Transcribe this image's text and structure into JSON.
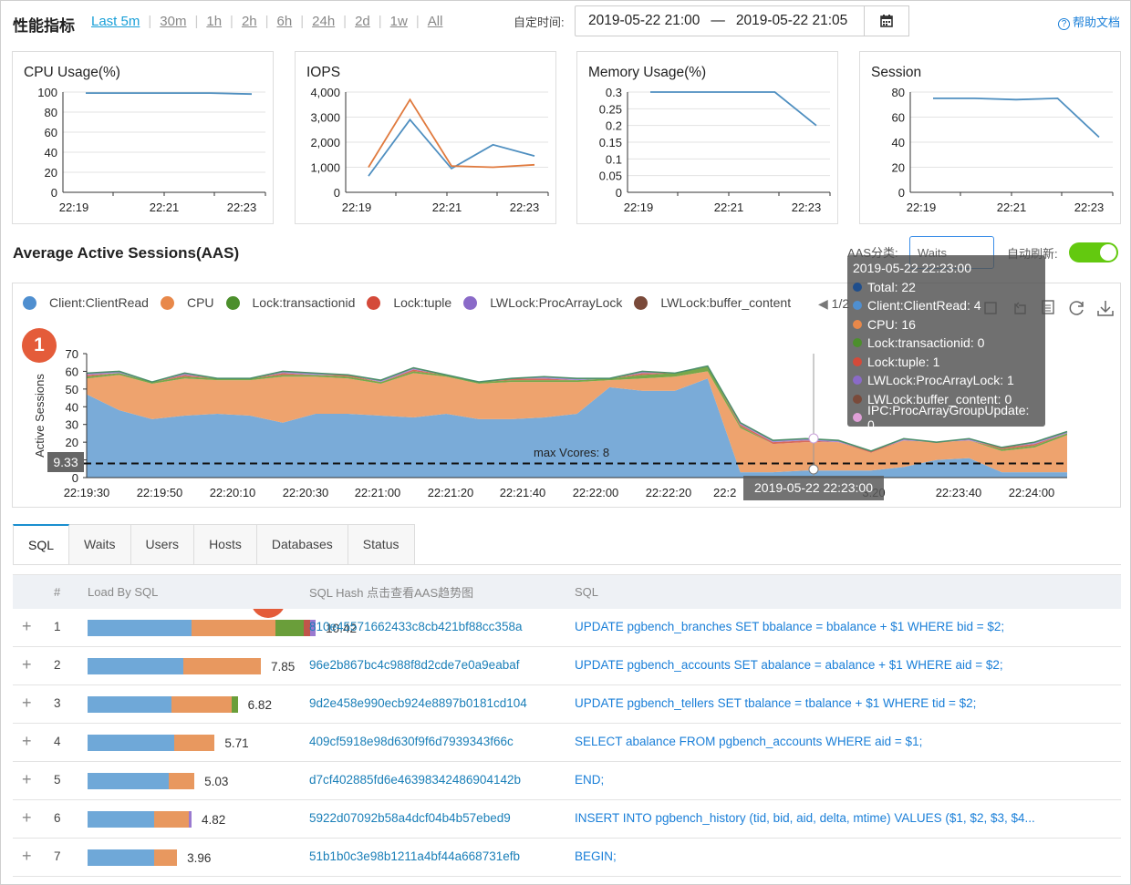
{
  "header": {
    "title": "性能指标",
    "ranges": [
      "Last 5m",
      "30m",
      "1h",
      "2h",
      "6h",
      "24h",
      "2d",
      "1w",
      "All"
    ],
    "active_range": "Last 5m",
    "custom_time_label": "自定时间:",
    "start_time": "2019-05-22 21:00",
    "dash": "—",
    "end_time": "2019-05-22 21:05",
    "help_label": "帮助文档"
  },
  "metrics": [
    {
      "title": "CPU Usage(%)",
      "x": [
        "22:19",
        "22:21",
        "22:23"
      ],
      "yticks": [
        "100",
        "80",
        "60",
        "40",
        "20",
        "0"
      ]
    },
    {
      "title": "IOPS",
      "x": [
        "22:19",
        "22:21",
        "22:23"
      ],
      "yticks": [
        "4,000",
        "3,000",
        "2,000",
        "1,000",
        "0"
      ]
    },
    {
      "title": "Memory Usage(%)",
      "x": [
        "22:19",
        "22:21",
        "22:23"
      ],
      "yticks": [
        "0.3",
        "0.25",
        "0.2",
        "0.15",
        "0.1",
        "0.05",
        "0"
      ]
    },
    {
      "title": "Session",
      "x": [
        "22:19",
        "22:21",
        "22:23"
      ],
      "yticks": [
        "80",
        "60",
        "40",
        "20",
        "0"
      ]
    }
  ],
  "aas": {
    "title": "Average Active Sessions(AAS)",
    "category_label": "AAS分类:",
    "category_value": "Waits",
    "auto_refresh_label": "自动刷新:",
    "legend": [
      {
        "name": "Client:ClientRead",
        "color": "#4f8fd0"
      },
      {
        "name": "CPU",
        "color": "#e8884a"
      },
      {
        "name": "Lock:transactionid",
        "color": "#4c8f2c"
      },
      {
        "name": "Lock:tuple",
        "color": "#d44a3a"
      },
      {
        "name": "LWLock:ProcArrayLock",
        "color": "#8a6ac8"
      },
      {
        "name": "LWLock:buffer_content",
        "color": "#7a4a3a"
      }
    ],
    "pager": "1/2",
    "ylabel": "Active Sessions",
    "max_vcores_label": "max Vcores: 8",
    "y_marker": "9.33",
    "hover_time": "2019-05-22 22:23:00",
    "xticks": [
      "22:19:30",
      "22:19:50",
      "22:20:10",
      "22:20:30",
      "22:21:00",
      "22:21:20",
      "22:21:40",
      "22:22:00",
      "22:22:20",
      "22:2",
      "3:20",
      "22:23:40",
      "22:24:00"
    ],
    "yticks": [
      "70",
      "60",
      "50",
      "40",
      "30",
      "20",
      "10",
      "0"
    ],
    "tooltip": {
      "time": "2019-05-22 22:23:00",
      "lines": [
        {
          "text": "Total: 22",
          "color": "#1f4e8c"
        },
        {
          "text": "Client:ClientRead: 4",
          "color": "#4f8fd0"
        },
        {
          "text": "CPU: 16",
          "color": "#e8884a"
        },
        {
          "text": "Lock:transactionid: 0",
          "color": "#4c8f2c"
        },
        {
          "text": "Lock:tuple: 1",
          "color": "#d44a3a"
        },
        {
          "text": "LWLock:ProcArrayLock: 1",
          "color": "#8a6ac8"
        },
        {
          "text": "LWLock:buffer_content: 0",
          "color": "#7a4a3a"
        },
        {
          "text": "IPC:ProcArrayGroupUpdate: 0",
          "color": "#e0a0d8"
        }
      ]
    }
  },
  "badges": [
    "1",
    "2"
  ],
  "tabs": [
    "SQL",
    "Waits",
    "Users",
    "Hosts",
    "Databases",
    "Status"
  ],
  "table": {
    "headers": {
      "num": "#",
      "load": "Load By SQL",
      "hash": "SQL Hash 点击查看AAS趋势图",
      "sql": "SQL"
    },
    "rows": [
      {
        "num": "1",
        "load": "10.42",
        "hash": "810e45571662433c8cb421bf88cc358a",
        "sql": "UPDATE pgbench_branches SET bbalance = bbalance + $1 WHERE bid = $2;",
        "segs": [
          {
            "v": 3.6,
            "c": "#6fa8d8"
          },
          {
            "v": 2.9,
            "c": "#e8985f"
          },
          {
            "v": 1.0,
            "c": "#6a9e3a"
          },
          {
            "v": 0.2,
            "c": "#c0554a"
          },
          {
            "v": 0.2,
            "c": "#9a7ad0"
          }
        ]
      },
      {
        "num": "2",
        "load": "7.85",
        "hash": "96e2b867bc4c988f8d2cde7e0a9eabaf",
        "sql": "UPDATE pgbench_accounts SET abalance = abalance + $1 WHERE aid = $2;",
        "segs": [
          {
            "v": 3.3,
            "c": "#6fa8d8"
          },
          {
            "v": 2.7,
            "c": "#e8985f"
          }
        ]
      },
      {
        "num": "3",
        "load": "6.82",
        "hash": "9d2e458e990ecb924e8897b0181cd104",
        "sql": "UPDATE pgbench_tellers SET tbalance = tbalance + $1 WHERE tid = $2;",
        "segs": [
          {
            "v": 2.9,
            "c": "#6fa8d8"
          },
          {
            "v": 2.1,
            "c": "#e8985f"
          },
          {
            "v": 0.2,
            "c": "#6a9e3a"
          }
        ]
      },
      {
        "num": "4",
        "load": "5.71",
        "hash": "409cf5918e98d630f9f6d7939343f66c",
        "sql": "SELECT abalance FROM pgbench_accounts WHERE aid = $1;",
        "segs": [
          {
            "v": 3.0,
            "c": "#6fa8d8"
          },
          {
            "v": 1.4,
            "c": "#e8985f"
          }
        ]
      },
      {
        "num": "5",
        "load": "5.03",
        "hash": "d7cf402885fd6e46398342486904142b",
        "sql": "END;",
        "segs": [
          {
            "v": 2.8,
            "c": "#6fa8d8"
          },
          {
            "v": 0.9,
            "c": "#e8985f"
          }
        ]
      },
      {
        "num": "6",
        "load": "4.82",
        "hash": "5922d07092b58a4dcf04b4b57ebed9",
        "sql": "INSERT INTO pgbench_history (tid, bid, aid, delta, mtime) VALUES ($1, $2, $3, $4...",
        "segs": [
          {
            "v": 2.3,
            "c": "#6fa8d8"
          },
          {
            "v": 1.2,
            "c": "#e8985f"
          },
          {
            "v": 0.1,
            "c": "#9a7ad0"
          }
        ]
      },
      {
        "num": "7",
        "load": "3.96",
        "hash": "51b1b0c3e98b1211a4bf44a668731efb",
        "sql": "BEGIN;",
        "segs": [
          {
            "v": 2.3,
            "c": "#6fa8d8"
          },
          {
            "v": 0.8,
            "c": "#e8985f"
          }
        ]
      }
    ]
  },
  "chart_data": [
    {
      "type": "line",
      "title": "CPU Usage(%)",
      "x": [
        "22:19",
        "22:20",
        "22:21",
        "22:22",
        "22:23"
      ],
      "series": [
        {
          "values": [
            99,
            99,
            99,
            99,
            98
          ]
        }
      ],
      "ylim": [
        0,
        100
      ]
    },
    {
      "type": "line",
      "title": "IOPS",
      "x": [
        "22:19",
        "22:20",
        "22:21",
        "22:22",
        "22:23"
      ],
      "series": [
        {
          "values": [
            650,
            2900,
            950,
            1900,
            1450
          ]
        },
        {
          "values": [
            1000,
            3700,
            1050,
            1000,
            1100
          ]
        }
      ],
      "ylim": [
        0,
        4000
      ]
    },
    {
      "type": "line",
      "title": "Memory Usage(%)",
      "x": [
        "22:19",
        "22:20",
        "22:21",
        "22:22",
        "22:23"
      ],
      "series": [
        {
          "values": [
            0.3,
            0.3,
            0.3,
            0.3,
            0.2
          ]
        }
      ],
      "ylim": [
        0,
        0.3
      ]
    },
    {
      "type": "line",
      "title": "Session",
      "x": [
        "22:19",
        "22:20",
        "22:21",
        "22:22",
        "22:23"
      ],
      "series": [
        {
          "values": [
            75,
            75,
            74,
            75,
            44
          ]
        }
      ],
      "ylim": [
        0,
        80
      ]
    },
    {
      "type": "area",
      "title": "Average Active Sessions(AAS)",
      "ylabel": "Active Sessions",
      "ylim": [
        0,
        70
      ],
      "series": [
        {
          "name": "Client:ClientRead",
          "values": [
            47,
            38,
            33,
            35,
            36,
            35,
            31,
            36,
            36,
            35,
            34,
            36,
            33,
            33,
            34,
            36,
            51,
            49,
            49,
            56,
            3,
            3,
            4,
            4,
            4,
            6,
            10,
            11,
            3,
            3,
            3
          ]
        },
        {
          "name": "CPU",
          "values": [
            9,
            20,
            20,
            21,
            19,
            20,
            26,
            21,
            20,
            18,
            25,
            21,
            20,
            21,
            20,
            18,
            4,
            7,
            8,
            4,
            25,
            16,
            16,
            16,
            10,
            15,
            10,
            10,
            12,
            14,
            21
          ]
        },
        {
          "name": "Lock:transactionid",
          "values": [
            1,
            1,
            1,
            1,
            1,
            1,
            1,
            1,
            1,
            1,
            1,
            1,
            1,
            1,
            1,
            1,
            1,
            2,
            2,
            3,
            1,
            0,
            0,
            0,
            0,
            0,
            0,
            0,
            1,
            1,
            1
          ]
        },
        {
          "name": "Lock:tuple",
          "values": [
            1,
            0,
            0,
            1,
            0,
            0,
            1,
            0,
            1,
            0,
            1,
            0,
            0,
            1,
            1,
            0,
            0,
            1,
            0,
            0,
            1,
            1,
            1,
            0,
            1,
            0,
            0,
            0,
            1,
            1,
            0
          ]
        },
        {
          "name": "LWLock:ProcArrayLock",
          "values": [
            1,
            1,
            0,
            1,
            0,
            0,
            1,
            1,
            0,
            1,
            1,
            0,
            0,
            0,
            1,
            1,
            0,
            1,
            0,
            0,
            1,
            1,
            1,
            1,
            0,
            1,
            0,
            1,
            0,
            1,
            1
          ]
        }
      ],
      "max_vcores": 8
    }
  ]
}
